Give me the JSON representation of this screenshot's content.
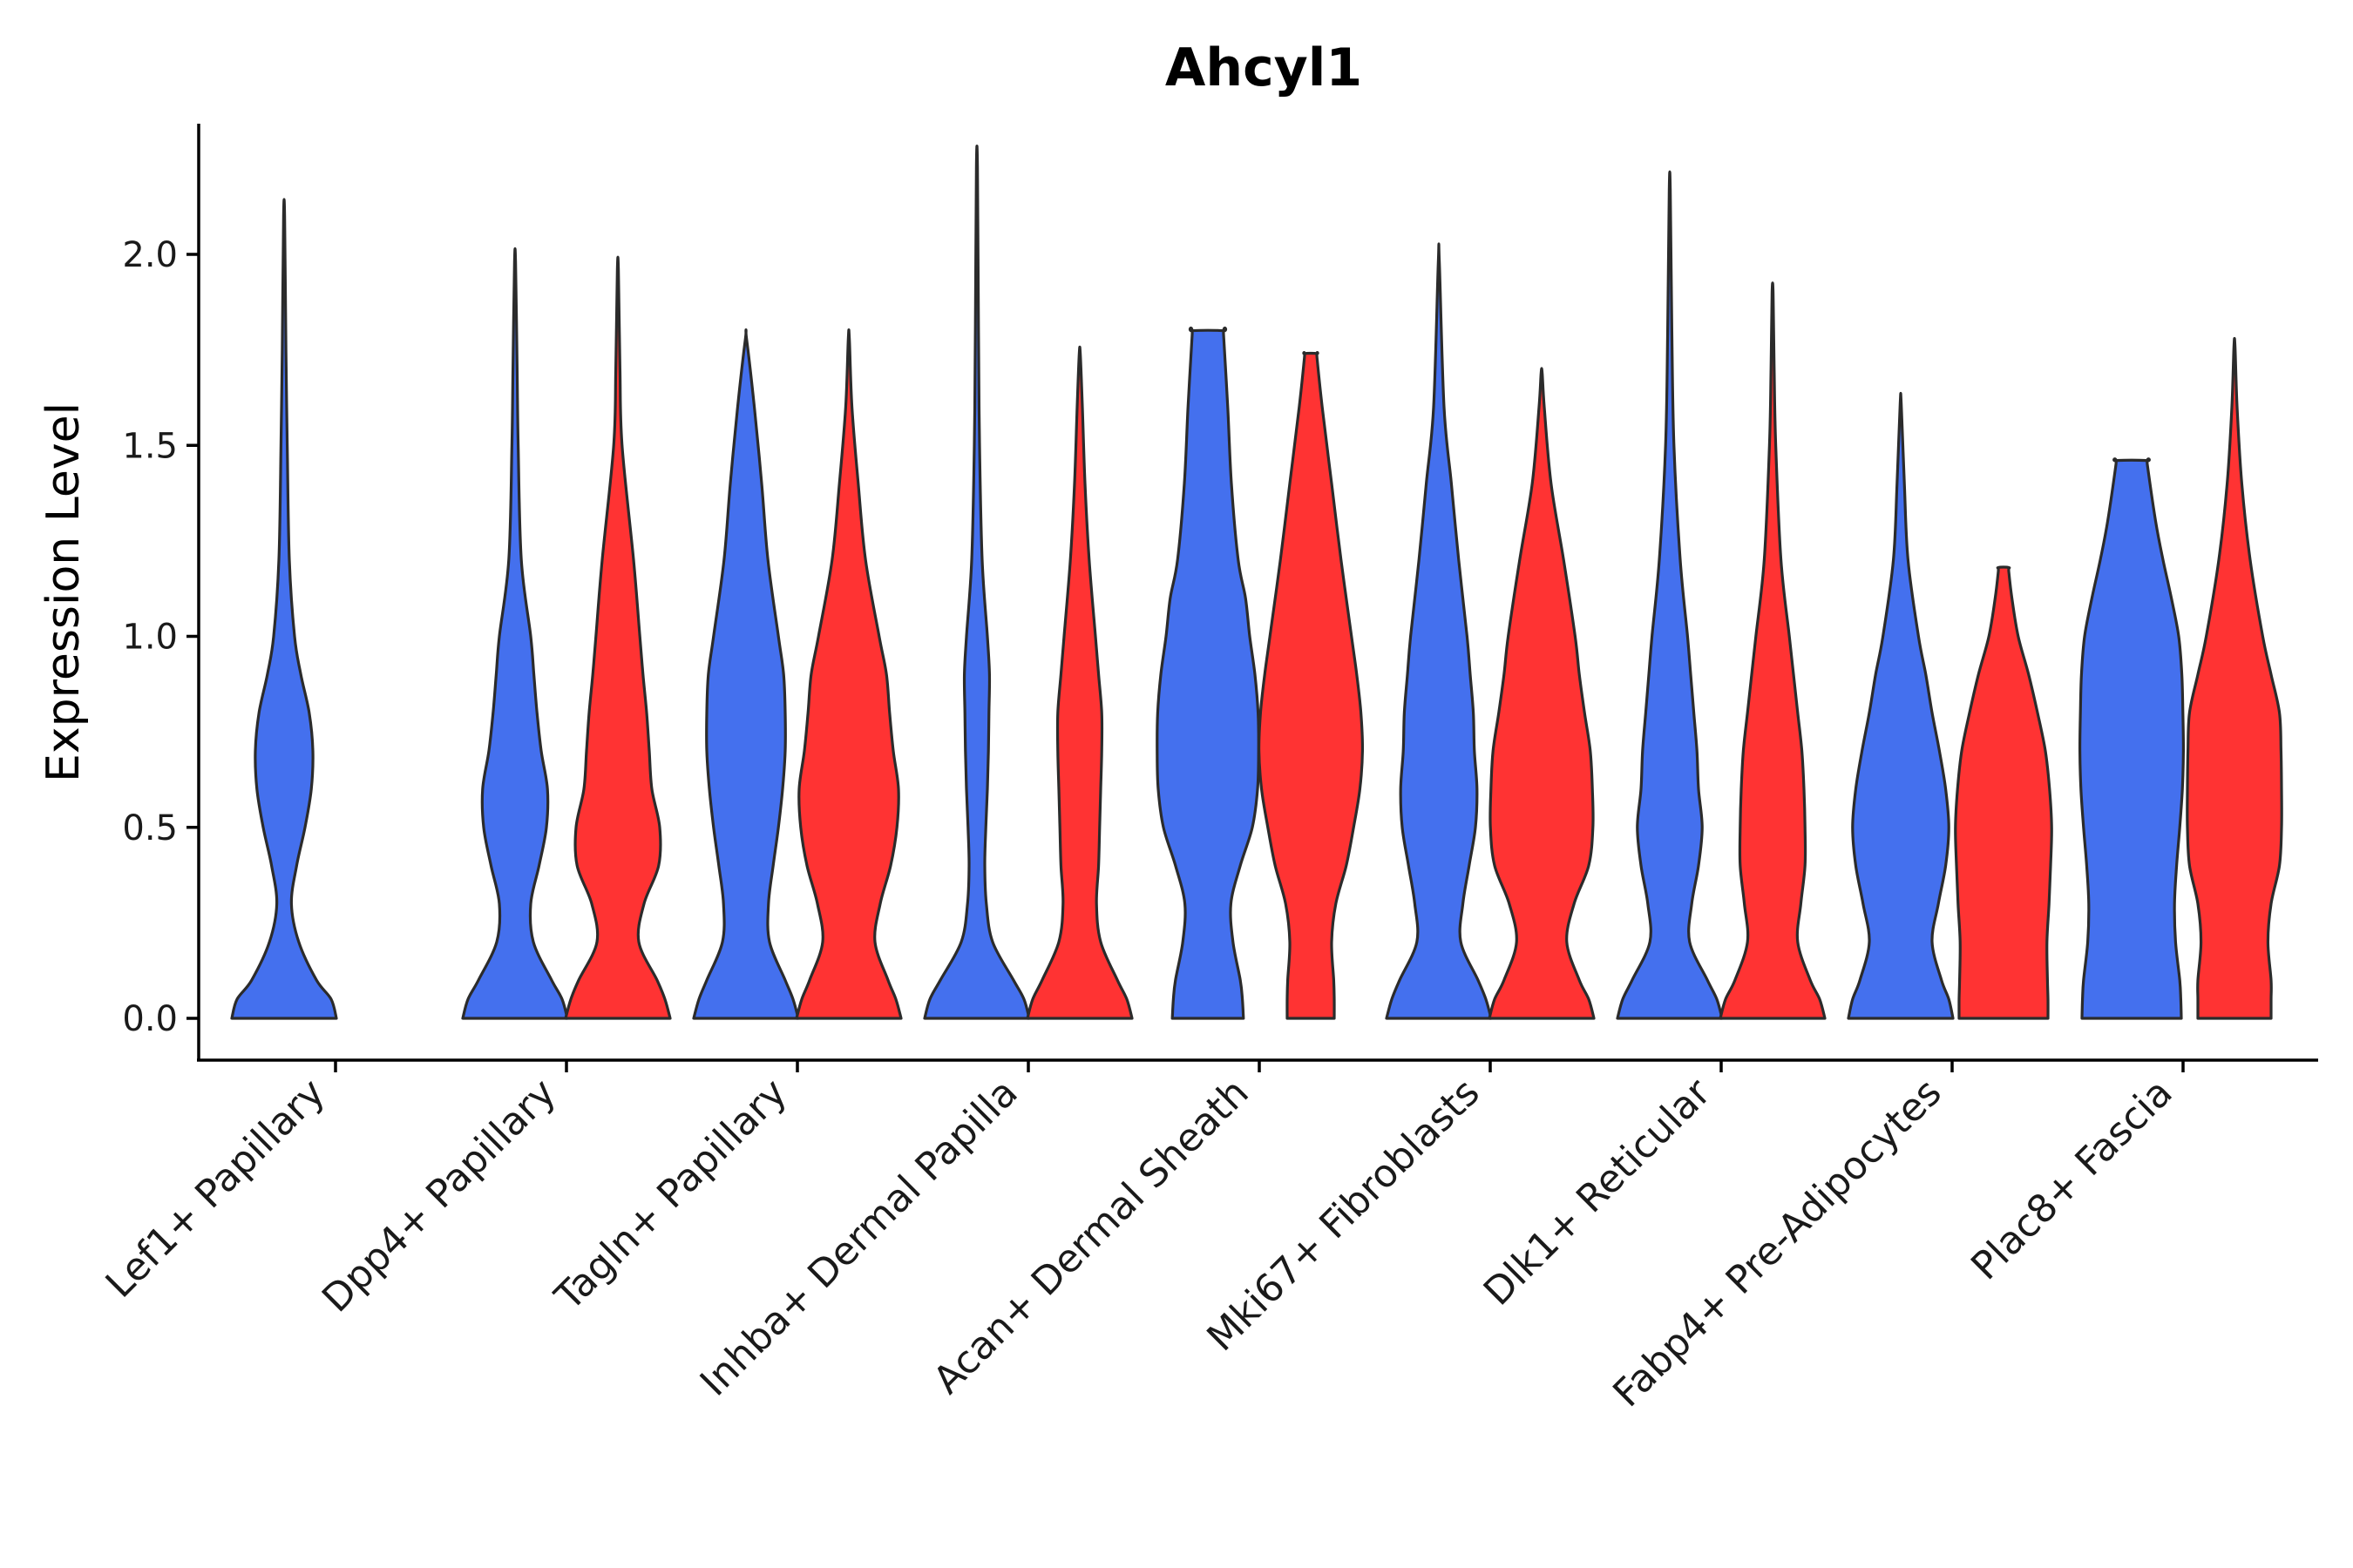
{
  "chart_data": {
    "type": "violin",
    "title": "Ahcyl1",
    "xlabel": "",
    "ylabel": "Expression Level",
    "ylim": [
      -0.11,
      2.35
    ],
    "yticks": [
      0.0,
      0.5,
      1.0,
      1.5,
      2.0
    ],
    "ytick_labels": [
      "0.0",
      "0.5",
      "1.0",
      "1.5",
      "2.0"
    ],
    "legend": "none",
    "grid": false,
    "series_colors": {
      "A": "#4470EE",
      "B": "#FF3333"
    },
    "categories": [
      "Lef1+ Papillary",
      "Dpp4+ Papillary",
      "Tagln+ Papillary",
      "Inhba+ Dermal Papilla",
      "Acan+ Dermal Sheath",
      "Mki67+ Fibroblasts",
      "Dlk1+ Reticular",
      "Fabp4+ Pre-Adipocytes",
      "Plac8+ Fascia"
    ],
    "violins": [
      {
        "category": 0,
        "group": "A",
        "max": 2.1,
        "profile": [
          [
            0,
            1.0
          ],
          [
            0.05,
            0.9
          ],
          [
            0.1,
            0.62
          ],
          [
            0.2,
            0.28
          ],
          [
            0.3,
            0.14
          ],
          [
            0.4,
            0.24
          ],
          [
            0.5,
            0.4
          ],
          [
            0.6,
            0.52
          ],
          [
            0.7,
            0.55
          ],
          [
            0.8,
            0.48
          ],
          [
            0.9,
            0.32
          ],
          [
            1.0,
            0.2
          ],
          [
            1.2,
            0.1
          ],
          [
            1.5,
            0.06
          ],
          [
            1.75,
            0.035
          ],
          [
            2.1,
            0.01
          ]
        ]
      },
      {
        "category": 1,
        "group": "A",
        "max": 1.98,
        "profile": [
          [
            0,
            1.0
          ],
          [
            0.05,
            0.9
          ],
          [
            0.1,
            0.7
          ],
          [
            0.2,
            0.35
          ],
          [
            0.3,
            0.3
          ],
          [
            0.4,
            0.46
          ],
          [
            0.5,
            0.6
          ],
          [
            0.6,
            0.62
          ],
          [
            0.7,
            0.5
          ],
          [
            0.8,
            0.42
          ],
          [
            0.9,
            0.36
          ],
          [
            1.0,
            0.3
          ],
          [
            1.2,
            0.12
          ],
          [
            1.5,
            0.06
          ],
          [
            1.7,
            0.04
          ],
          [
            1.98,
            0.01
          ]
        ]
      },
      {
        "category": 1,
        "group": "B",
        "max": 1.96,
        "profile": [
          [
            0,
            1.0
          ],
          [
            0.05,
            0.9
          ],
          [
            0.1,
            0.75
          ],
          [
            0.2,
            0.4
          ],
          [
            0.3,
            0.5
          ],
          [
            0.4,
            0.78
          ],
          [
            0.5,
            0.8
          ],
          [
            0.6,
            0.65
          ],
          [
            0.7,
            0.6
          ],
          [
            0.8,
            0.55
          ],
          [
            0.9,
            0.48
          ],
          [
            1.0,
            0.42
          ],
          [
            1.2,
            0.3
          ],
          [
            1.5,
            0.08
          ],
          [
            1.7,
            0.04
          ],
          [
            1.96,
            0.01
          ]
        ]
      },
      {
        "category": 2,
        "group": "A",
        "max": 1.78,
        "profile": [
          [
            0,
            1.0
          ],
          [
            0.05,
            0.9
          ],
          [
            0.1,
            0.75
          ],
          [
            0.2,
            0.45
          ],
          [
            0.3,
            0.43
          ],
          [
            0.4,
            0.52
          ],
          [
            0.5,
            0.62
          ],
          [
            0.6,
            0.7
          ],
          [
            0.7,
            0.75
          ],
          [
            0.8,
            0.75
          ],
          [
            0.9,
            0.72
          ],
          [
            1.0,
            0.62
          ],
          [
            1.2,
            0.42
          ],
          [
            1.4,
            0.3
          ],
          [
            1.6,
            0.16
          ],
          [
            1.78,
            0.01
          ]
        ]
      },
      {
        "category": 2,
        "group": "B",
        "max": 1.78,
        "profile": [
          [
            0,
            1.0
          ],
          [
            0.05,
            0.9
          ],
          [
            0.1,
            0.75
          ],
          [
            0.2,
            0.5
          ],
          [
            0.3,
            0.6
          ],
          [
            0.4,
            0.8
          ],
          [
            0.5,
            0.92
          ],
          [
            0.6,
            0.95
          ],
          [
            0.7,
            0.85
          ],
          [
            0.8,
            0.78
          ],
          [
            0.9,
            0.72
          ],
          [
            1.0,
            0.58
          ],
          [
            1.2,
            0.32
          ],
          [
            1.4,
            0.18
          ],
          [
            1.6,
            0.06
          ],
          [
            1.78,
            0.01
          ]
        ]
      },
      {
        "category": 3,
        "group": "A",
        "max": 2.23,
        "profile": [
          [
            0,
            1.0
          ],
          [
            0.05,
            0.9
          ],
          [
            0.1,
            0.7
          ],
          [
            0.2,
            0.3
          ],
          [
            0.3,
            0.18
          ],
          [
            0.4,
            0.15
          ],
          [
            0.5,
            0.17
          ],
          [
            0.6,
            0.2
          ],
          [
            0.7,
            0.22
          ],
          [
            0.8,
            0.23
          ],
          [
            0.9,
            0.24
          ],
          [
            1.0,
            0.2
          ],
          [
            1.2,
            0.1
          ],
          [
            1.5,
            0.05
          ],
          [
            1.8,
            0.03
          ],
          [
            2.23,
            0.01
          ]
        ]
      },
      {
        "category": 3,
        "group": "B",
        "max": 1.74,
        "profile": [
          [
            0,
            1.0
          ],
          [
            0.05,
            0.9
          ],
          [
            0.1,
            0.72
          ],
          [
            0.2,
            0.4
          ],
          [
            0.3,
            0.32
          ],
          [
            0.4,
            0.36
          ],
          [
            0.5,
            0.38
          ],
          [
            0.6,
            0.4
          ],
          [
            0.7,
            0.42
          ],
          [
            0.8,
            0.42
          ],
          [
            0.9,
            0.36
          ],
          [
            1.0,
            0.3
          ],
          [
            1.2,
            0.18
          ],
          [
            1.4,
            0.1
          ],
          [
            1.6,
            0.05
          ],
          [
            1.74,
            0.01
          ]
        ]
      },
      {
        "category": 4,
        "group": "A",
        "max": 1.8,
        "profile": [
          [
            0,
            0.68
          ],
          [
            0.05,
            0.66
          ],
          [
            0.1,
            0.62
          ],
          [
            0.2,
            0.48
          ],
          [
            0.3,
            0.44
          ],
          [
            0.4,
            0.62
          ],
          [
            0.5,
            0.85
          ],
          [
            0.6,
            0.95
          ],
          [
            0.7,
            0.97
          ],
          [
            0.8,
            0.96
          ],
          [
            0.9,
            0.9
          ],
          [
            1.0,
            0.8
          ],
          [
            1.1,
            0.72
          ],
          [
            1.2,
            0.58
          ],
          [
            1.4,
            0.45
          ],
          [
            1.6,
            0.38
          ],
          [
            1.79,
            0.3
          ],
          [
            1.8,
            0.3
          ]
        ]
      },
      {
        "category": 4,
        "group": "B",
        "max": 1.74,
        "profile": [
          [
            0,
            0.45
          ],
          [
            0.05,
            0.45
          ],
          [
            0.1,
            0.44
          ],
          [
            0.2,
            0.4
          ],
          [
            0.3,
            0.48
          ],
          [
            0.4,
            0.68
          ],
          [
            0.5,
            0.82
          ],
          [
            0.6,
            0.94
          ],
          [
            0.7,
            0.99
          ],
          [
            0.8,
            0.96
          ],
          [
            0.9,
            0.88
          ],
          [
            1.0,
            0.78
          ],
          [
            1.2,
            0.58
          ],
          [
            1.4,
            0.4
          ],
          [
            1.6,
            0.22
          ],
          [
            1.73,
            0.12
          ],
          [
            1.74,
            0.12
          ]
        ]
      },
      {
        "category": 5,
        "group": "A",
        "max": 1.98,
        "profile": [
          [
            0,
            1.0
          ],
          [
            0.05,
            0.9
          ],
          [
            0.1,
            0.75
          ],
          [
            0.2,
            0.42
          ],
          [
            0.3,
            0.46
          ],
          [
            0.4,
            0.58
          ],
          [
            0.5,
            0.7
          ],
          [
            0.6,
            0.73
          ],
          [
            0.7,
            0.68
          ],
          [
            0.8,
            0.66
          ],
          [
            0.9,
            0.6
          ],
          [
            1.0,
            0.54
          ],
          [
            1.2,
            0.38
          ],
          [
            1.4,
            0.24
          ],
          [
            1.6,
            0.1
          ],
          [
            1.98,
            0.01
          ]
        ]
      },
      {
        "category": 5,
        "group": "B",
        "max": 1.69,
        "profile": [
          [
            0,
            1.0
          ],
          [
            0.05,
            0.9
          ],
          [
            0.1,
            0.72
          ],
          [
            0.2,
            0.48
          ],
          [
            0.3,
            0.62
          ],
          [
            0.4,
            0.9
          ],
          [
            0.5,
            0.98
          ],
          [
            0.6,
            0.97
          ],
          [
            0.7,
            0.93
          ],
          [
            0.8,
            0.82
          ],
          [
            0.9,
            0.72
          ],
          [
            1.0,
            0.64
          ],
          [
            1.2,
            0.42
          ],
          [
            1.4,
            0.18
          ],
          [
            1.6,
            0.05
          ],
          [
            1.69,
            0.01
          ]
        ]
      },
      {
        "category": 6,
        "group": "A",
        "max": 2.17,
        "profile": [
          [
            0,
            1.0
          ],
          [
            0.05,
            0.9
          ],
          [
            0.1,
            0.72
          ],
          [
            0.2,
            0.38
          ],
          [
            0.3,
            0.42
          ],
          [
            0.4,
            0.55
          ],
          [
            0.5,
            0.62
          ],
          [
            0.6,
            0.55
          ],
          [
            0.7,
            0.52
          ],
          [
            0.8,
            0.46
          ],
          [
            0.9,
            0.4
          ],
          [
            1.0,
            0.34
          ],
          [
            1.2,
            0.2
          ],
          [
            1.5,
            0.08
          ],
          [
            1.8,
            0.04
          ],
          [
            2.17,
            0.01
          ]
        ]
      },
      {
        "category": 6,
        "group": "B",
        "max": 1.9,
        "profile": [
          [
            0,
            1.0
          ],
          [
            0.05,
            0.9
          ],
          [
            0.1,
            0.72
          ],
          [
            0.2,
            0.48
          ],
          [
            0.3,
            0.54
          ],
          [
            0.4,
            0.62
          ],
          [
            0.5,
            0.62
          ],
          [
            0.6,
            0.6
          ],
          [
            0.7,
            0.56
          ],
          [
            0.8,
            0.48
          ],
          [
            0.9,
            0.4
          ],
          [
            1.0,
            0.32
          ],
          [
            1.2,
            0.16
          ],
          [
            1.5,
            0.06
          ],
          [
            1.7,
            0.03
          ],
          [
            1.9,
            0.01
          ]
        ]
      },
      {
        "category": 7,
        "group": "A",
        "max": 1.61,
        "profile": [
          [
            0,
            1.0
          ],
          [
            0.05,
            0.92
          ],
          [
            0.1,
            0.78
          ],
          [
            0.2,
            0.6
          ],
          [
            0.3,
            0.72
          ],
          [
            0.4,
            0.86
          ],
          [
            0.5,
            0.92
          ],
          [
            0.6,
            0.86
          ],
          [
            0.7,
            0.74
          ],
          [
            0.8,
            0.6
          ],
          [
            0.9,
            0.48
          ],
          [
            1.0,
            0.34
          ],
          [
            1.2,
            0.14
          ],
          [
            1.4,
            0.07
          ],
          [
            1.61,
            0.01
          ]
        ]
      },
      {
        "category": 7,
        "group": "B",
        "max": 1.18,
        "profile": [
          [
            0,
            0.85
          ],
          [
            0.05,
            0.85
          ],
          [
            0.1,
            0.84
          ],
          [
            0.2,
            0.83
          ],
          [
            0.3,
            0.87
          ],
          [
            0.4,
            0.9
          ],
          [
            0.5,
            0.92
          ],
          [
            0.6,
            0.88
          ],
          [
            0.7,
            0.8
          ],
          [
            0.8,
            0.65
          ],
          [
            0.9,
            0.48
          ],
          [
            1.0,
            0.28
          ],
          [
            1.1,
            0.16
          ],
          [
            1.17,
            0.1
          ],
          [
            1.18,
            0.1
          ]
        ]
      },
      {
        "category": 8,
        "group": "A",
        "max": 1.46,
        "profile": [
          [
            0,
            0.95
          ],
          [
            0.05,
            0.94
          ],
          [
            0.1,
            0.92
          ],
          [
            0.2,
            0.84
          ],
          [
            0.3,
            0.82
          ],
          [
            0.4,
            0.86
          ],
          [
            0.5,
            0.92
          ],
          [
            0.6,
            0.97
          ],
          [
            0.7,
            0.99
          ],
          [
            0.8,
            0.98
          ],
          [
            0.9,
            0.96
          ],
          [
            1.0,
            0.9
          ],
          [
            1.1,
            0.76
          ],
          [
            1.2,
            0.6
          ],
          [
            1.3,
            0.46
          ],
          [
            1.45,
            0.3
          ],
          [
            1.46,
            0.3
          ]
        ]
      },
      {
        "category": 8,
        "group": "B",
        "max": 1.76,
        "profile": [
          [
            0,
            0.7
          ],
          [
            0.05,
            0.7
          ],
          [
            0.1,
            0.7
          ],
          [
            0.2,
            0.64
          ],
          [
            0.3,
            0.7
          ],
          [
            0.4,
            0.86
          ],
          [
            0.5,
            0.9
          ],
          [
            0.6,
            0.9
          ],
          [
            0.7,
            0.89
          ],
          [
            0.8,
            0.86
          ],
          [
            0.9,
            0.7
          ],
          [
            1.0,
            0.54
          ],
          [
            1.2,
            0.3
          ],
          [
            1.4,
            0.14
          ],
          [
            1.6,
            0.05
          ],
          [
            1.76,
            0.01
          ]
        ]
      }
    ]
  }
}
